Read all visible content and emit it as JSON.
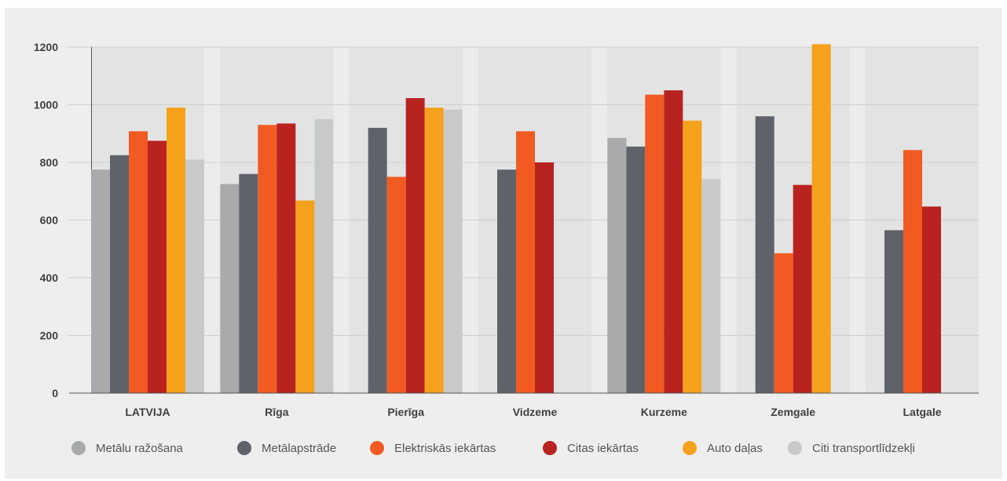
{
  "chart_data": {
    "type": "bar",
    "title": "",
    "xlabel": "",
    "ylabel": "",
    "ylim": [
      0,
      1200
    ],
    "yticks": [
      0,
      200,
      400,
      600,
      800,
      1000,
      1200
    ],
    "grid": true,
    "legend_position": "bottom",
    "categories": [
      "LATVIJA",
      "Rīga",
      "Pierīga",
      "Vidzeme",
      "Kurzeme",
      "Zemgale",
      "Latgale"
    ],
    "series": [
      {
        "name": "Metālu ražošana",
        "color": "#a8aaab",
        "values": [
          775,
          725,
          null,
          null,
          885,
          null,
          null
        ]
      },
      {
        "name": "Metālapstrāde",
        "color": "#5f6369",
        "values": [
          825,
          760,
          920,
          775,
          855,
          960,
          565
        ]
      },
      {
        "name": "Elektriskās iekārtas",
        "color": "#f15b22",
        "values": [
          908,
          930,
          750,
          908,
          1035,
          485,
          843
        ]
      },
      {
        "name": "Citas iekārtas",
        "color": "#b8231f",
        "values": [
          875,
          935,
          1023,
          800,
          1050,
          722,
          647
        ]
      },
      {
        "name": "Auto daļas",
        "color": "#f6a11b",
        "values": [
          990,
          668,
          990,
          null,
          945,
          1210,
          null
        ]
      },
      {
        "name": "Citi transportlīdzekļi",
        "color": "#c8c9c9",
        "values": [
          810,
          950,
          983,
          null,
          742,
          null,
          null
        ]
      }
    ]
  }
}
